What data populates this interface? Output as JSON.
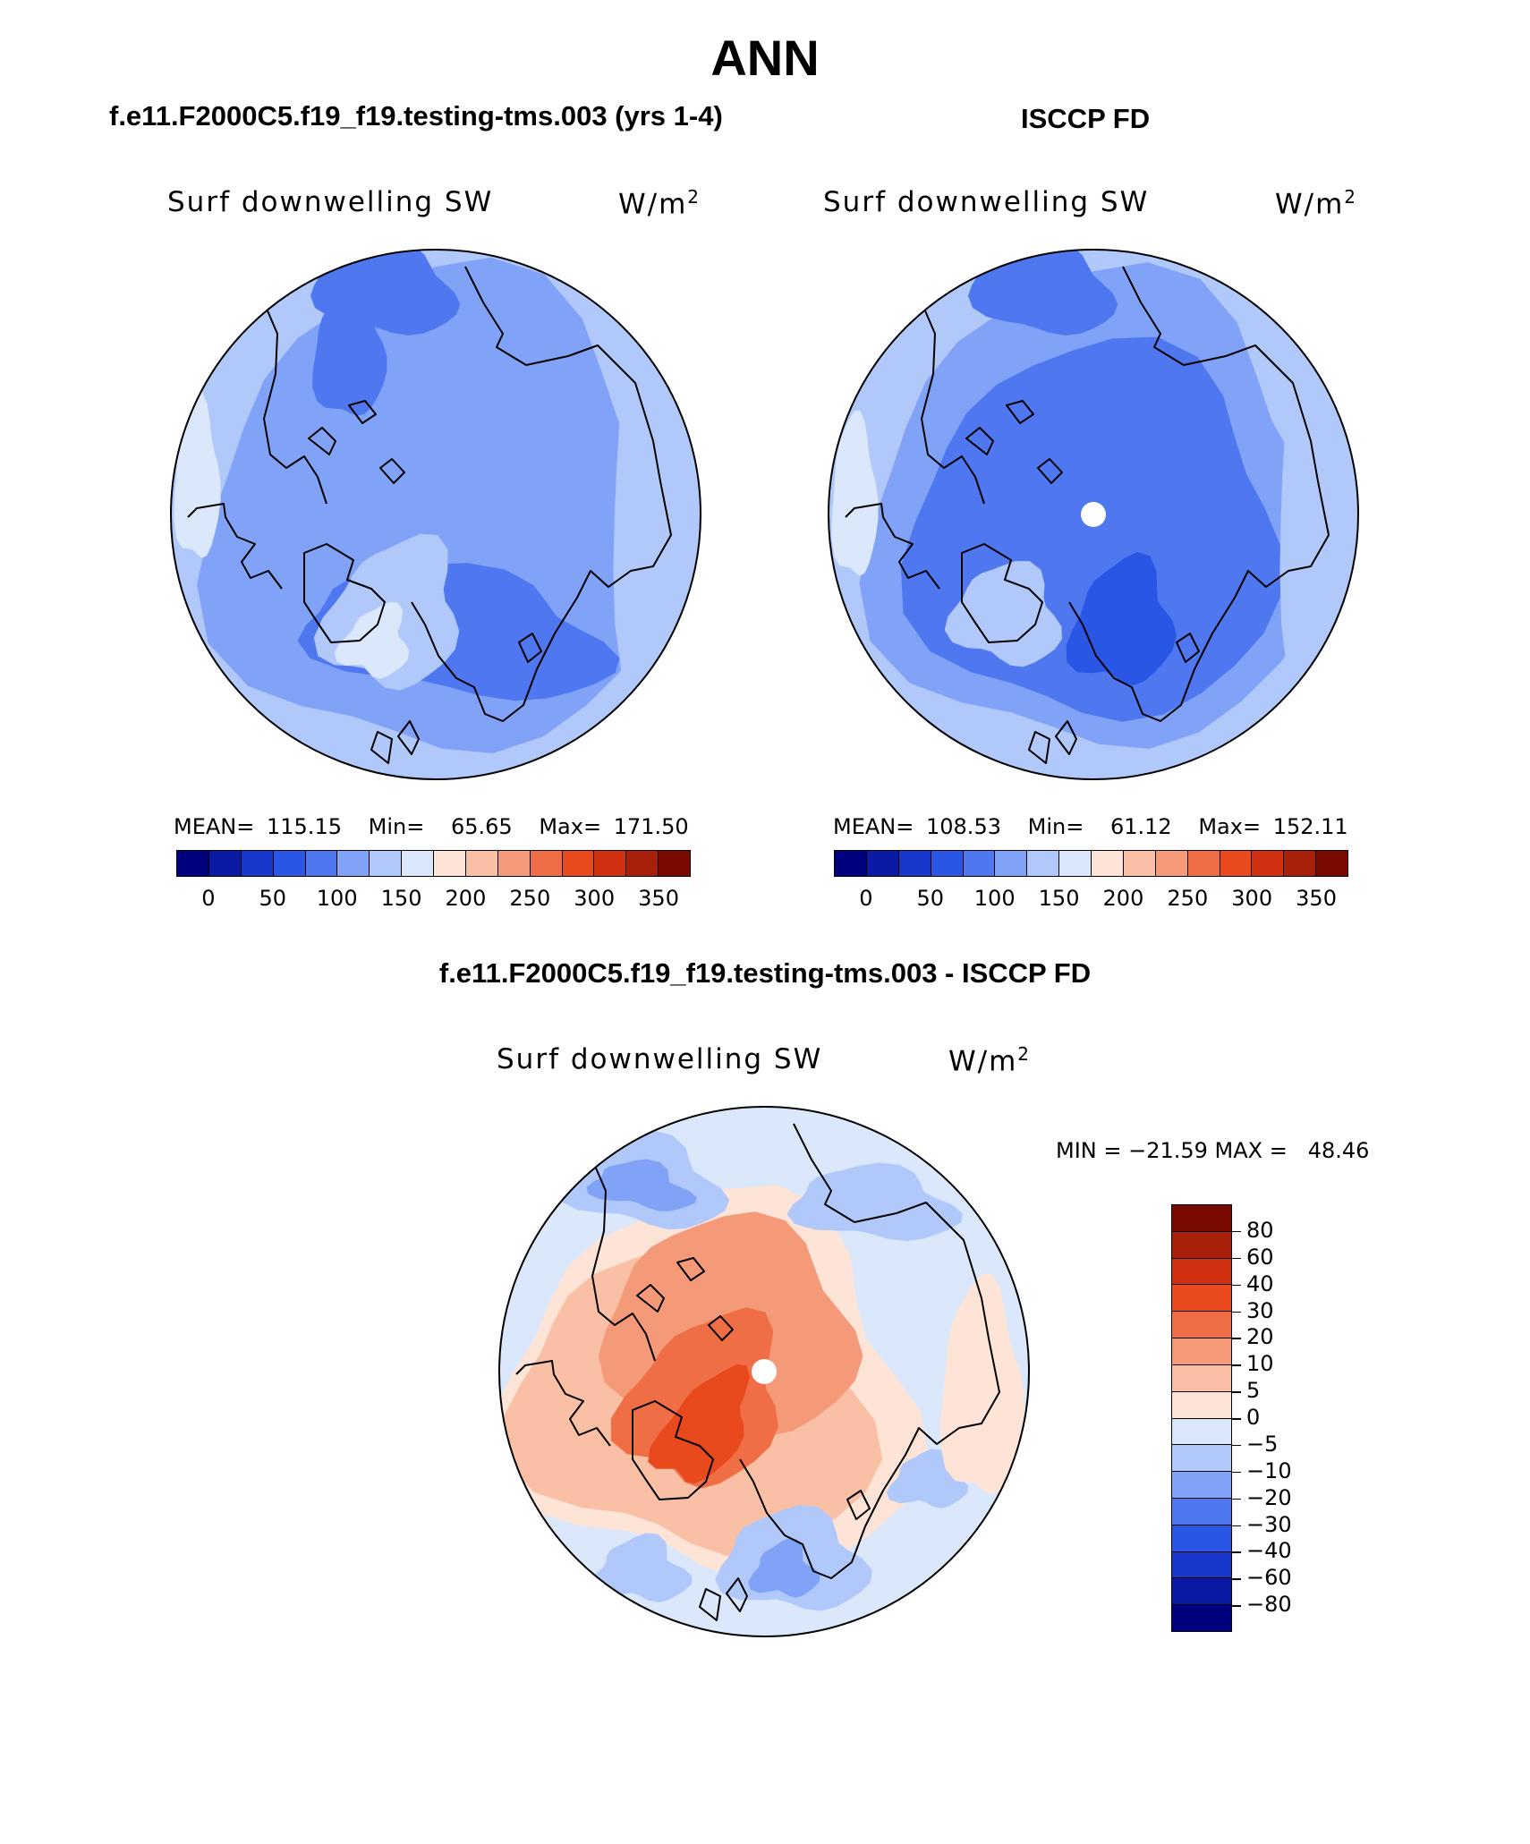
{
  "figure": {
    "title": "ANN",
    "panels": [
      {
        "heading": "f.e11.F2000C5.f19_f19.testing-tms.003 (yrs 1-4)",
        "variable": "Surf downwelling SW",
        "units_base": "W/m",
        "units_exp": "2",
        "mean_label": "MEAN=",
        "mean": "115.15",
        "min_label": "Min=",
        "min": "65.65",
        "max_label": "Max=",
        "max": "171.50"
      },
      {
        "heading": "ISCCP FD",
        "variable": "Surf downwelling SW",
        "units_base": "W/m",
        "units_exp": "2",
        "mean_label": "MEAN=",
        "mean": "108.53",
        "min_label": "Min=",
        "min": "61.12",
        "max_label": "Max=",
        "max": "152.11"
      }
    ],
    "diff_panel": {
      "heading": "f.e11.F2000C5.f19_f19.testing-tms.003 - ISCCP FD",
      "variable": "Surf downwelling SW",
      "units_base": "W/m",
      "units_exp": "2",
      "minmax": "MIN = −21.59 MAX =   48.46"
    }
  },
  "chart_data": [
    {
      "type": "heatmap",
      "projection": "north polar stereographic",
      "title": "Surf downwelling SW (model)",
      "units": "W/m2",
      "colorbar_ticks": [
        "0",
        "50",
        "100",
        "150",
        "200",
        "250",
        "300",
        "350"
      ],
      "colors": [
        "#00007f",
        "#0a1aa5",
        "#1838cc",
        "#2a56e6",
        "#4f78f0",
        "#80a2f7",
        "#b1c8fa",
        "#dbe8fb",
        "#fde4d6",
        "#f9c0a6",
        "#f59a79",
        "#ef6e46",
        "#e84a1d",
        "#cf3111",
        "#a81f0a",
        "#7a0a00"
      ],
      "stats": {
        "mean": 115.15,
        "min": 65.65,
        "max": 171.5
      }
    },
    {
      "type": "heatmap",
      "projection": "north polar stereographic",
      "title": "Surf downwelling SW (ISCCP FD)",
      "units": "W/m2",
      "colorbar_ticks": [
        "0",
        "50",
        "100",
        "150",
        "200",
        "250",
        "300",
        "350"
      ],
      "colors": [
        "#00007f",
        "#0a1aa5",
        "#1838cc",
        "#2a56e6",
        "#4f78f0",
        "#80a2f7",
        "#b1c8fa",
        "#dbe8fb",
        "#fde4d6",
        "#f9c0a6",
        "#f59a79",
        "#ef6e46",
        "#e84a1d",
        "#cf3111",
        "#a81f0a",
        "#7a0a00"
      ],
      "stats": {
        "mean": 108.53,
        "min": 61.12,
        "max": 152.11
      }
    },
    {
      "type": "heatmap",
      "projection": "north polar stereographic",
      "title": "Surf downwelling SW (model - ISCCP FD)",
      "units": "W/m2",
      "colorbar_ticks": [
        "80",
        "60",
        "40",
        "30",
        "20",
        "10",
        "5",
        "0",
        "−5",
        "−10",
        "−20",
        "−30",
        "−40",
        "−60",
        "−80"
      ],
      "colors": [
        "#7a0a00",
        "#a81f0a",
        "#cf3111",
        "#e84a1d",
        "#ef6e46",
        "#f59a79",
        "#f9c0a6",
        "#fde4d6",
        "#dbe8fb",
        "#b1c8fa",
        "#80a2f7",
        "#4f78f0",
        "#2a56e6",
        "#1838cc",
        "#0a1aa5",
        "#00007f"
      ],
      "stats": {
        "min": -21.59,
        "max": 48.46
      }
    }
  ]
}
